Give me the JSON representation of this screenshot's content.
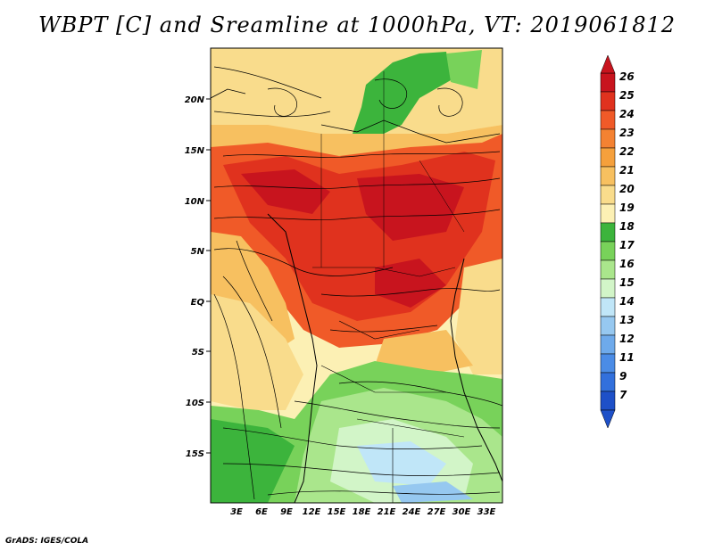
{
  "title": "WBPT [C] and Sreamline at 1000hPa, VT: 2019061812",
  "footer": "GrADS: IGES/COLA",
  "lat_labels": [
    "20N",
    "15N",
    "10N",
    "5N",
    "EQ",
    "5S",
    "10S",
    "15S"
  ],
  "lon_labels": [
    "3E",
    "6E",
    "9E",
    "12E",
    "15E",
    "18E",
    "21E",
    "24E",
    "27E",
    "30E",
    "33E"
  ],
  "colorbar": {
    "levels": [
      "26",
      "25",
      "24",
      "23",
      "22",
      "21",
      "20",
      "19",
      "18",
      "17",
      "16",
      "15",
      "14",
      "13",
      "12",
      "11",
      "9",
      "7"
    ],
    "colors": [
      "#c8141e",
      "#e0321e",
      "#f05a28",
      "#f48232",
      "#f5a03c",
      "#f7c060",
      "#f9dc8c",
      "#fcf0b4",
      "#3cb43c",
      "#78d25a",
      "#aae68c",
      "#d2f5c8",
      "#c0e6f8",
      "#96c8f0",
      "#6eaaeb",
      "#4b8ce6",
      "#3270dc",
      "#1e50c8"
    ]
  }
}
